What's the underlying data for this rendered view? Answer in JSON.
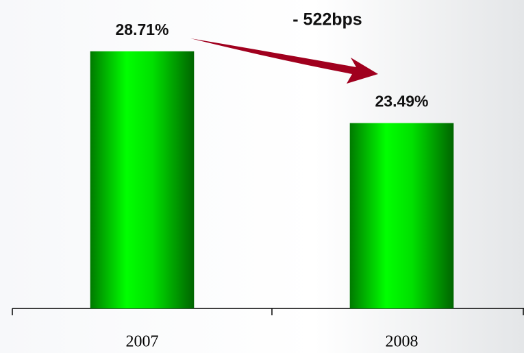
{
  "chart_data": {
    "type": "bar",
    "categories": [
      "2007",
      "2008"
    ],
    "values": [
      28.71,
      23.49
    ],
    "value_labels": [
      "28.71%",
      "23.49%"
    ],
    "color": "#00ff00",
    "ylim": [
      10,
      30
    ],
    "annotation": "- 522bps"
  }
}
